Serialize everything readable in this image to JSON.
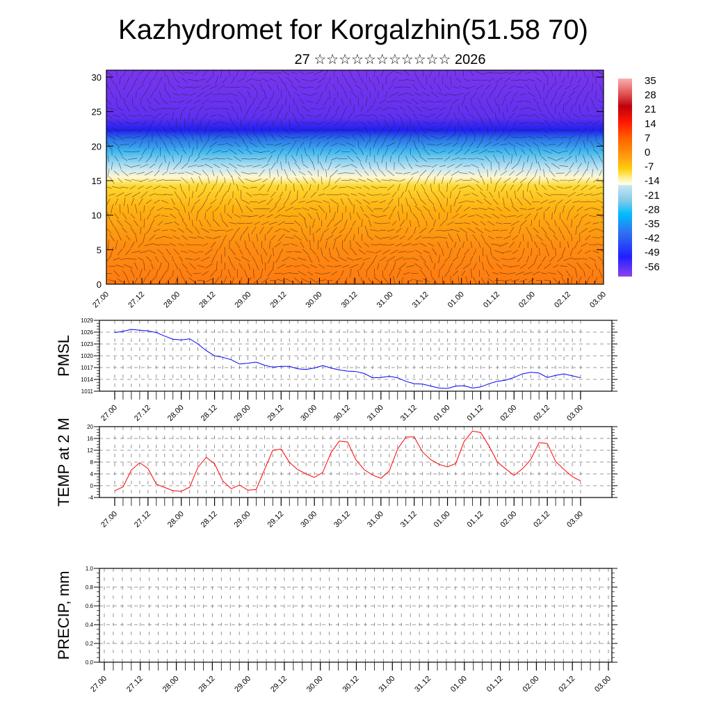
{
  "chart_data": [
    {
      "type": "heatmap",
      "title": "Kazhydromet for Korgalzhin(51.58 70)",
      "subtitle": "27 ☆☆☆☆☆☆☆☆☆☆☆ 2026",
      "description_layers": "temperature shading with wind vectors",
      "ylim": [
        0,
        31
      ],
      "yticks": [
        "0",
        "5",
        "10",
        "15",
        "20",
        "25",
        "30"
      ],
      "colorbar": {
        "labels": [
          "35",
          "28",
          "21",
          "14",
          "7",
          "0",
          "-7",
          "-14",
          "-21",
          "-28",
          "-35",
          "-42",
          "-49",
          "-56"
        ],
        "range": [
          -60,
          37
        ]
      }
    },
    {
      "type": "line",
      "ylabel": "PMSL",
      "ylim": [
        1011,
        1029
      ],
      "yticks": [
        "1011",
        "1014",
        "1017",
        "1020",
        "1023",
        "1026",
        "1029"
      ],
      "color": "#0000ff",
      "values": [
        1025.9,
        1026.2,
        1026.7,
        1026.5,
        1026.3,
        1025.9,
        1025.0,
        1024.2,
        1024.0,
        1024.3,
        1023.0,
        1021.3,
        1020.0,
        1019.6,
        1019.0,
        1017.9,
        1018.1,
        1018.4,
        1017.6,
        1017.1,
        1017.3,
        1017.3,
        1016.7,
        1016.5,
        1016.9,
        1017.5,
        1016.9,
        1016.4,
        1016.1,
        1016.0,
        1015.5,
        1014.4,
        1014.5,
        1014.8,
        1014.4,
        1013.5,
        1012.9,
        1012.8,
        1012.3,
        1011.8,
        1011.7,
        1012.3,
        1012.4,
        1011.8,
        1012.1,
        1012.9,
        1013.5,
        1013.8,
        1014.5,
        1015.4,
        1015.8,
        1015.6,
        1014.5,
        1015.0,
        1015.4,
        1014.9,
        1014.4
      ]
    },
    {
      "type": "line",
      "ylabel": "TEMP at 2 M",
      "ylim": [
        -4,
        20
      ],
      "yticks": [
        "-4",
        "0",
        "4",
        "8",
        "12",
        "16",
        "20"
      ],
      "color": "#ff0000",
      "values": [
        -1.7,
        -0.4,
        5.3,
        7.8,
        5.8,
        0.5,
        -0.6,
        -1.7,
        -1.9,
        -0.5,
        6.2,
        9.6,
        7.4,
        1.6,
        -1.0,
        0.2,
        -1.5,
        -1.3,
        5.4,
        12.0,
        12.4,
        7.9,
        5.4,
        4.0,
        2.8,
        4.5,
        11.2,
        15.1,
        14.8,
        8.7,
        5.4,
        3.6,
        2.5,
        5.0,
        12.4,
        16.5,
        16.5,
        11.4,
        8.8,
        7.2,
        6.4,
        7.5,
        15.0,
        18.5,
        18.0,
        13.4,
        8.0,
        5.7,
        3.5,
        5.7,
        8.8,
        14.6,
        14.3,
        8.2,
        5.5,
        3.1,
        1.6
      ]
    },
    {
      "type": "line",
      "ylabel": "PRECIP, mm",
      "ylim": [
        0,
        1
      ],
      "yticks": [
        "0.0",
        "0.2",
        "0.4",
        "0.6",
        "0.8",
        "1.0"
      ],
      "values": []
    }
  ],
  "xticks": [
    "27.00",
    "27.12",
    "28.00",
    "28.12",
    "29.00",
    "29.12",
    "30.00",
    "30.12",
    "31.00",
    "31.12",
    "01.00",
    "01.12",
    "02.00",
    "02.12",
    "03.00"
  ],
  "step_hours": 3
}
